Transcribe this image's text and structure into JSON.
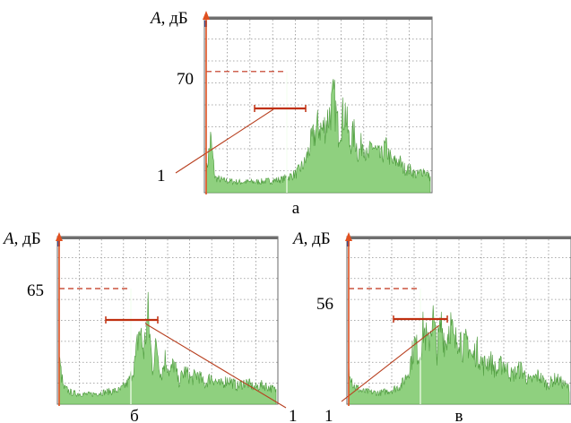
{
  "figure": {
    "marker_label": "1"
  },
  "colors": {
    "spectrum_fill": "#8fd07f",
    "spectrum_stroke": "#4c9a3c",
    "axis": "#e05020",
    "plot_border": "#6a6a6a",
    "top_band": "#6f6f6f",
    "grid": "#909090",
    "dashed": "#c03018",
    "marker_line": "#b84020",
    "range_bar": "#c03010"
  },
  "chart_data": [
    {
      "type": "area",
      "panel_label": "а",
      "ylabel_var": "A",
      "ylabel_unit": ", дБ",
      "peak_value_label": "70",
      "peak_value": 70,
      "marker_label": "1",
      "envelope": [
        [
          0,
          14
        ],
        [
          2,
          40
        ],
        [
          4,
          11
        ],
        [
          8,
          9
        ],
        [
          14,
          8
        ],
        [
          22,
          8
        ],
        [
          30,
          9
        ],
        [
          34,
          10
        ],
        [
          40,
          14
        ],
        [
          44,
          22
        ],
        [
          47,
          38
        ],
        [
          50,
          50
        ],
        [
          52,
          46
        ],
        [
          55,
          58
        ],
        [
          57,
          70
        ],
        [
          59,
          46
        ],
        [
          62,
          62
        ],
        [
          64,
          36
        ],
        [
          66,
          44
        ],
        [
          68,
          28
        ],
        [
          70,
          40
        ],
        [
          72,
          24
        ],
        [
          74,
          36
        ],
        [
          76,
          30
        ],
        [
          78,
          26
        ],
        [
          80,
          34
        ],
        [
          83,
          22
        ],
        [
          86,
          24
        ],
        [
          88,
          18
        ],
        [
          91,
          17
        ],
        [
          94,
          13
        ],
        [
          97,
          17
        ],
        [
          100,
          11
        ]
      ]
    },
    {
      "type": "area",
      "panel_label": "б",
      "ylabel_var": "A",
      "ylabel_unit": ", дБ",
      "peak_value_label": "65",
      "peak_value": 65,
      "marker_label": "1",
      "envelope": [
        [
          0,
          32
        ],
        [
          2,
          12
        ],
        [
          6,
          8
        ],
        [
          14,
          7
        ],
        [
          22,
          9
        ],
        [
          28,
          10
        ],
        [
          32,
          16
        ],
        [
          35,
          30
        ],
        [
          37,
          55
        ],
        [
          39,
          38
        ],
        [
          41,
          65
        ],
        [
          43,
          26
        ],
        [
          45,
          44
        ],
        [
          47,
          20
        ],
        [
          49,
          34
        ],
        [
          51,
          22
        ],
        [
          53,
          30
        ],
        [
          55,
          16
        ],
        [
          58,
          24
        ],
        [
          61,
          18
        ],
        [
          64,
          22
        ],
        [
          67,
          14
        ],
        [
          70,
          20
        ],
        [
          74,
          14
        ],
        [
          78,
          18
        ],
        [
          82,
          13
        ],
        [
          86,
          16
        ],
        [
          90,
          12
        ],
        [
          94,
          14
        ],
        [
          100,
          10
        ]
      ]
    },
    {
      "type": "area",
      "panel_label": "в",
      "ylabel_var": "A",
      "ylabel_unit": ", дБ",
      "peak_value_label": "56",
      "peak_value": 56,
      "marker_label": "1",
      "envelope": [
        [
          0,
          26
        ],
        [
          2,
          12
        ],
        [
          6,
          8
        ],
        [
          14,
          7
        ],
        [
          20,
          9
        ],
        [
          24,
          12
        ],
        [
          27,
          20
        ],
        [
          30,
          38
        ],
        [
          32,
          30
        ],
        [
          34,
          48
        ],
        [
          36,
          36
        ],
        [
          38,
          56
        ],
        [
          40,
          34
        ],
        [
          42,
          50
        ],
        [
          44,
          38
        ],
        [
          46,
          52
        ],
        [
          48,
          36
        ],
        [
          50,
          46
        ],
        [
          52,
          34
        ],
        [
          54,
          40
        ],
        [
          56,
          28
        ],
        [
          58,
          34
        ],
        [
          61,
          24
        ],
        [
          64,
          28
        ],
        [
          67,
          20
        ],
        [
          70,
          26
        ],
        [
          74,
          18
        ],
        [
          78,
          22
        ],
        [
          82,
          14
        ],
        [
          86,
          18
        ],
        [
          90,
          12
        ],
        [
          94,
          16
        ],
        [
          100,
          10
        ]
      ]
    }
  ]
}
